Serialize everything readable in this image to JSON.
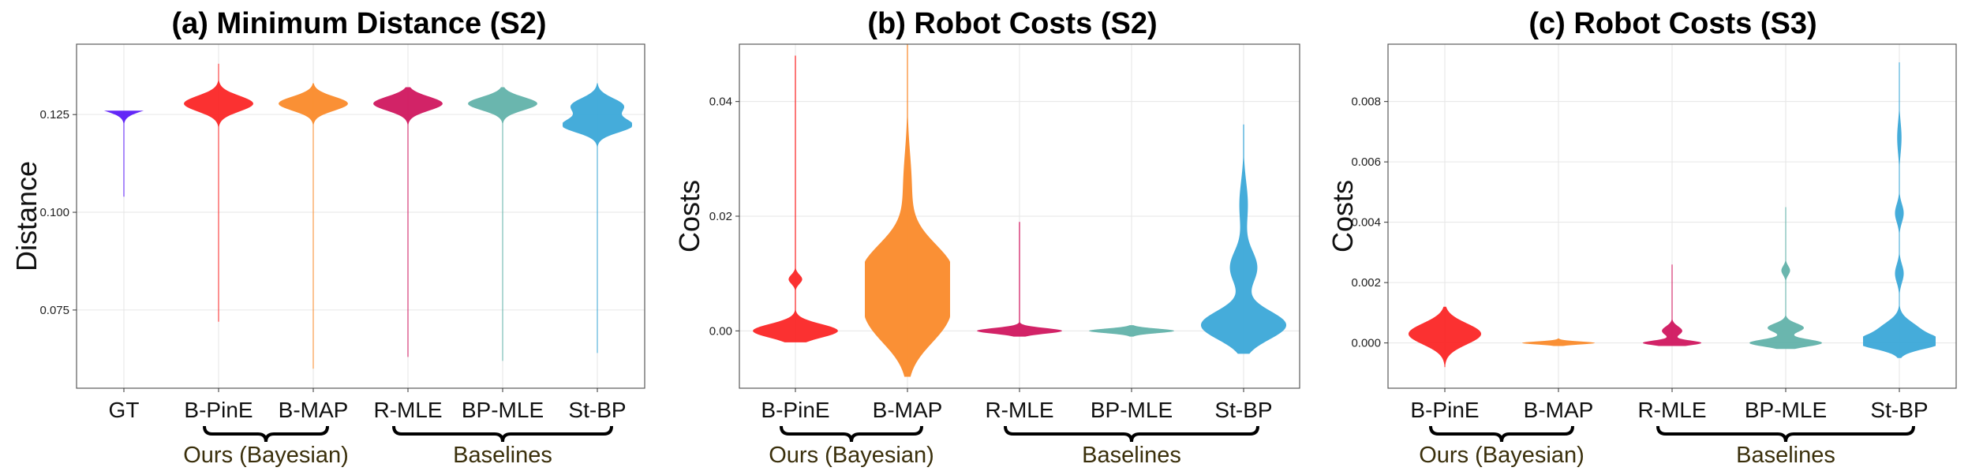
{
  "figure": {
    "group_labels": {
      "ours": "Ours (Bayesian)",
      "baselines": "Baselines"
    }
  },
  "chart_data": [
    {
      "type": "violin",
      "title": "(a) Minimum Distance (S2)",
      "xlabel": "",
      "ylabel": "Distance",
      "ylim": [
        0.055,
        0.143
      ],
      "yticks": [
        0.075,
        0.1,
        0.125
      ],
      "ytick_labels": [
        "0.075",
        "0.100",
        "0.125"
      ],
      "grid": true,
      "categories": [
        "GT",
        "B-PinE",
        "B-MAP",
        "R-MLE",
        "BP-MLE",
        "St-BP"
      ],
      "colors": [
        "#5b1bf7",
        "#fb2626",
        "#fa8a2a",
        "#d0175f",
        "#62b2aa",
        "#3ba8d8"
      ],
      "series": [
        {
          "name": "GT",
          "color": "#5b1bf7",
          "tail": [
            0.104,
            0.126
          ],
          "peaks": [
            [
              0.1278,
              1.0,
              0.0017
            ]
          ]
        },
        {
          "name": "B-PinE",
          "color": "#fb2626",
          "tail": [
            0.072,
            0.138
          ],
          "peaks": [
            [
              0.1278,
              1.0,
              0.002
            ]
          ]
        },
        {
          "name": "B-MAP",
          "color": "#fa8a2a",
          "tail": [
            0.06,
            0.133
          ],
          "peaks": [
            [
              0.1278,
              1.0,
              0.0018
            ]
          ]
        },
        {
          "name": "R-MLE",
          "color": "#d0175f",
          "tail": [
            0.063,
            0.132
          ],
          "peaks": [
            [
              0.1278,
              1.0,
              0.0018
            ]
          ]
        },
        {
          "name": "BP-MLE",
          "color": "#62b2aa",
          "tail": [
            0.062,
            0.132
          ],
          "peaks": [
            [
              0.1278,
              1.0,
              0.0017
            ]
          ]
        },
        {
          "name": "St-BP",
          "color": "#3ba8d8",
          "tail": [
            0.064,
            0.133
          ],
          "peaks": [
            [
              0.1272,
              0.75,
              0.002
            ],
            [
              0.1222,
              1.0,
              0.0018
            ]
          ]
        }
      ],
      "groups": [
        {
          "label_key": "ours",
          "from": "B-PinE",
          "to": "B-MAP"
        },
        {
          "label_key": "baselines",
          "from": "R-MLE",
          "to": "St-BP"
        }
      ]
    },
    {
      "type": "violin",
      "title": "(b) Robot Costs (S2)",
      "xlabel": "",
      "ylabel": "Costs",
      "ylim": [
        -0.01,
        0.05
      ],
      "yticks": [
        0.0,
        0.02,
        0.04
      ],
      "ytick_labels": [
        "0.00",
        "0.02",
        "0.04"
      ],
      "grid": true,
      "categories": [
        "B-PinE",
        "B-MAP",
        "R-MLE",
        "BP-MLE",
        "St-BP"
      ],
      "colors": [
        "#fb2626",
        "#fa8a2a",
        "#d0175f",
        "#62b2aa",
        "#3ba8d8"
      ],
      "series": [
        {
          "name": "B-PinE",
          "color": "#fb2626",
          "tail": [
            -0.002,
            0.048
          ],
          "peaks": [
            [
              0.0,
              1.0,
              0.0012
            ],
            [
              0.009,
              0.16,
              0.0008
            ]
          ]
        },
        {
          "name": "B-MAP",
          "color": "#fa8a2a",
          "tail": [
            -0.008,
            0.05
          ],
          "peaks": [
            [
              0.002,
              0.85,
              0.0045
            ],
            [
              0.011,
              0.95,
              0.0045
            ],
            [
              0.025,
              0.1,
              0.006
            ]
          ]
        },
        {
          "name": "R-MLE",
          "color": "#d0175f",
          "tail": [
            -0.001,
            0.019
          ],
          "peaks": [
            [
              0.0,
              1.0,
              0.0005
            ]
          ]
        },
        {
          "name": "BP-MLE",
          "color": "#62b2aa",
          "tail": [
            -0.001,
            0.001
          ],
          "peaks": [
            [
              0.0,
              1.0,
              0.0004
            ]
          ]
        },
        {
          "name": "St-BP",
          "color": "#3ba8d8",
          "tail": [
            -0.004,
            0.036
          ],
          "peaks": [
            [
              0.001,
              1.0,
              0.0025
            ],
            [
              0.011,
              0.32,
              0.003
            ],
            [
              0.022,
              0.1,
              0.004
            ]
          ]
        }
      ],
      "groups": [
        {
          "label_key": "ours",
          "from": "B-PinE",
          "to": "B-MAP"
        },
        {
          "label_key": "baselines",
          "from": "R-MLE",
          "to": "St-BP"
        }
      ]
    },
    {
      "type": "violin",
      "title": "(c) Robot Costs (S3)",
      "xlabel": "",
      "ylabel": "Costs",
      "ylim": [
        -0.0015,
        0.0099
      ],
      "yticks": [
        0.0,
        0.002,
        0.004,
        0.006,
        0.008
      ],
      "ytick_labels": [
        "0.000",
        "0.002",
        "0.004",
        "0.006",
        "0.008"
      ],
      "grid": true,
      "categories": [
        "B-PinE",
        "B-MAP",
        "R-MLE",
        "BP-MLE",
        "St-BP"
      ],
      "colors": [
        "#fb2626",
        "#fa8a2a",
        "#d0175f",
        "#62b2aa",
        "#3ba8d8"
      ],
      "series": [
        {
          "name": "B-PinE",
          "color": "#fb2626",
          "tail": [
            -0.0008,
            0.0012
          ],
          "peaks": [
            [
              0.0003,
              1.0,
              0.00035
            ]
          ]
        },
        {
          "name": "B-MAP",
          "color": "#fa8a2a",
          "tail": [
            -0.0001,
            0.00015
          ],
          "peaks": [
            [
              0.0,
              1.0,
              5e-05
            ]
          ]
        },
        {
          "name": "R-MLE",
          "color": "#d0175f",
          "tail": [
            -0.0001,
            0.0026
          ],
          "peaks": [
            [
              0.0,
              0.8,
              8e-05
            ],
            [
              0.0004,
              0.28,
              0.00015
            ]
          ]
        },
        {
          "name": "BP-MLE",
          "color": "#62b2aa",
          "tail": [
            -0.0002,
            0.0045
          ],
          "peaks": [
            [
              0.0,
              1.0,
              0.00012
            ],
            [
              0.0005,
              0.5,
              0.00015
            ],
            [
              0.0024,
              0.12,
              0.00015
            ]
          ]
        },
        {
          "name": "St-BP",
          "color": "#3ba8d8",
          "tail": [
            -0.0005,
            0.0093
          ],
          "peaks": [
            [
              0.0,
              1.0,
              0.0002
            ],
            [
              0.0004,
              0.55,
              0.0003
            ],
            [
              0.0023,
              0.12,
              0.0003
            ],
            [
              0.0043,
              0.12,
              0.0003
            ],
            [
              0.0068,
              0.06,
              0.0005
            ]
          ]
        }
      ],
      "groups": [
        {
          "label_key": "ours",
          "from": "B-PinE",
          "to": "B-MAP"
        },
        {
          "label_key": "baselines",
          "from": "R-MLE",
          "to": "St-BP"
        }
      ]
    }
  ]
}
